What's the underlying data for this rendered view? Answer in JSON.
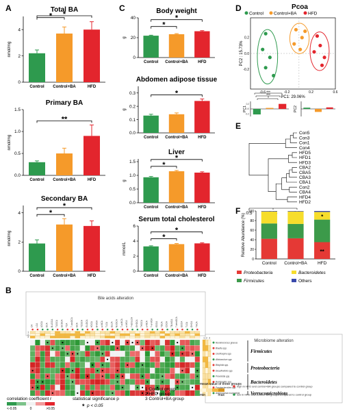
{
  "panel_labels": {
    "a": "A",
    "b": "B",
    "c": "C",
    "d": "D",
    "e": "E",
    "f": "F"
  },
  "colors": {
    "control": "#2e9a4e",
    "control_ba": "#f59a2a",
    "hfd": "#e3252d",
    "firmicutes": "#3c9a4a",
    "proteobacteria": "#e53935",
    "bacteroidetes": "#f6dd2c",
    "others": "#3949ab"
  },
  "chart_data": [
    {
      "id": "total-ba",
      "type": "bar",
      "title": "Total BA",
      "ylabel": "nmol/mg",
      "categories": [
        "Control",
        "Control+BA",
        "HFD"
      ],
      "values": [
        2.2,
        3.7,
        4.0
      ],
      "errors": [
        0.25,
        0.5,
        0.6
      ],
      "ylim": [
        0,
        5
      ],
      "yticks": [
        0,
        2,
        4
      ],
      "yticklabels": [
        "0",
        "2",
        "4"
      ],
      "significance": [
        {
          "from": 0,
          "to": 1,
          "label": "*"
        },
        {
          "from": 0,
          "to": 2,
          "label": "*"
        }
      ]
    },
    {
      "id": "primary-ba",
      "type": "bar",
      "title": "Primary BA",
      "ylabel": "nmol/mg",
      "categories": [
        "Control",
        "Control+BA",
        "HFD"
      ],
      "values": [
        0.3,
        0.5,
        0.9
      ],
      "errors": [
        0.03,
        0.12,
        0.25
      ],
      "ylim": [
        0,
        1.5
      ],
      "yticks": [
        0,
        0.5,
        1.0,
        1.5
      ],
      "yticklabels": [
        "0.0",
        "0.5",
        "1.0",
        "1.5"
      ],
      "significance": [
        {
          "from": 0,
          "to": 2,
          "label": "**"
        }
      ]
    },
    {
      "id": "secondary-ba",
      "type": "bar",
      "title": "Secondary BA",
      "ylabel": "nmol/mg",
      "categories": [
        "Control",
        "Control+BA",
        "HFD"
      ],
      "values": [
        1.9,
        3.2,
        3.1
      ],
      "errors": [
        0.25,
        0.4,
        0.35
      ],
      "ylim": [
        0,
        4.5
      ],
      "yticks": [
        0,
        2,
        4
      ],
      "yticklabels": [
        "0",
        "2",
        "4"
      ],
      "significance": [
        {
          "from": 0,
          "to": 1,
          "label": "*"
        },
        {
          "from": 0,
          "to": 2,
          "label": "*"
        }
      ]
    },
    {
      "id": "body-weight",
      "type": "bar",
      "title": "Body weight",
      "ylabel": "g",
      "categories": [
        "Control",
        "Control+BA",
        "HFD"
      ],
      "values": [
        22,
        23.5,
        26.5
      ],
      "errors": [
        0.5,
        0.6,
        0.6
      ],
      "ylim": [
        0,
        40
      ],
      "yticks": [
        0,
        20,
        40
      ],
      "yticklabels": [
        "0",
        "20",
        "40"
      ],
      "significance": [
        {
          "from": 0,
          "to": 1,
          "label": "*"
        },
        {
          "from": 0,
          "to": 2,
          "label": "*"
        }
      ]
    },
    {
      "id": "abdomen-adipose",
      "type": "bar",
      "title": "Abdomen adipose tissue",
      "ylabel": "g",
      "categories": [
        "Control",
        "Control+BA",
        "HFD"
      ],
      "values": [
        0.13,
        0.14,
        0.24
      ],
      "errors": [
        0.01,
        0.01,
        0.015
      ],
      "ylim": [
        0,
        0.35
      ],
      "yticks": [
        0,
        0.1,
        0.2,
        0.3
      ],
      "yticklabels": [
        "0.0",
        "0.1",
        "0.2",
        "0.3"
      ],
      "significance": [
        {
          "from": 0,
          "to": 2,
          "label": "*"
        }
      ]
    },
    {
      "id": "liver",
      "type": "bar",
      "title": "Liver",
      "ylabel": "g",
      "categories": [
        "Control",
        "Control+BA",
        "HFD"
      ],
      "values": [
        0.93,
        1.15,
        1.1
      ],
      "errors": [
        0.03,
        0.03,
        0.03
      ],
      "ylim": [
        0,
        1.6
      ],
      "yticks": [
        0,
        0.5,
        1.0,
        1.5
      ],
      "yticklabels": [
        "0.0",
        "0.5",
        "1.0",
        "1.5"
      ],
      "significance": [
        {
          "from": 0,
          "to": 1,
          "label": "*"
        },
        {
          "from": 0,
          "to": 2,
          "label": "*"
        }
      ]
    },
    {
      "id": "serum-cholesterol",
      "type": "bar",
      "title": "Serum total cholesterol",
      "ylabel": "mmol/L",
      "categories": [
        "Control",
        "Control+BA",
        "HFD"
      ],
      "values": [
        3.3,
        3.6,
        3.7
      ],
      "errors": [
        0.08,
        0.08,
        0.08
      ],
      "ylim": [
        0,
        6
      ],
      "yticks": [
        0,
        2,
        4,
        6
      ],
      "yticklabels": [
        "0",
        "2",
        "4",
        "6"
      ],
      "significance": [
        {
          "from": 0,
          "to": 1,
          "label": "*"
        },
        {
          "from": 0,
          "to": 2,
          "label": "*"
        }
      ]
    },
    {
      "id": "pcoa",
      "type": "scatter",
      "title": "Pcoa",
      "xlabel": "PC1: 29.06%",
      "ylabel": "PC2 : 15.73%",
      "xlim": [
        -0.8,
        0.6
      ],
      "ylim": [
        -0.45,
        0.45
      ],
      "xticks": [
        -0.6,
        -0.2,
        0.2,
        0.6
      ],
      "xticklabels": [
        "-0.6",
        "-0.2",
        "0.2",
        "0.6"
      ],
      "yticks": [
        -0.2,
        0.0,
        0.2
      ],
      "yticklabels": [
        "-0.2",
        "0.0",
        "0.2"
      ],
      "legend": [
        "Control",
        "Control+BA",
        "HFD"
      ],
      "series": [
        {
          "name": "Control",
          "points": [
            [
              -0.55,
              0.25
            ],
            [
              -0.6,
              0.05
            ],
            [
              -0.48,
              -0.05
            ],
            [
              -0.55,
              -0.18
            ],
            [
              -0.42,
              -0.28
            ]
          ]
        },
        {
          "name": "Control+BA",
          "points": [
            [
              -0.05,
              0.3
            ],
            [
              0.05,
              0.2
            ],
            [
              0.02,
              0.05
            ],
            [
              -0.08,
              0.12
            ],
            [
              0.1,
              0.28
            ]
          ]
        },
        {
          "name": "HFD",
          "points": [
            [
              0.3,
              0.22
            ],
            [
              0.35,
              0.1
            ],
            [
              0.42,
              -0.05
            ],
            [
              0.25,
              0.02
            ],
            [
              0.38,
              -0.15
            ]
          ]
        }
      ]
    },
    {
      "id": "pc-bars",
      "type": "bar",
      "ylabels": [
        "PC1",
        "PC2"
      ],
      "groups": [
        "Control",
        "Control+BA",
        "HFD"
      ],
      "pc1": [
        -0.22,
        0.04,
        0.2
      ],
      "pc2": [
        0.05,
        -0.12,
        0.06
      ],
      "significance": [
        "***",
        "***",
        "*"
      ],
      "yticks": [
        -0.2,
        0.0,
        0.2
      ],
      "yticklabels": [
        "-0.2",
        "0.0",
        "0.2"
      ]
    },
    {
      "id": "dendrogram",
      "type": "dendrogram",
      "leaves": [
        "Con5",
        "Con3",
        "Con1",
        "Con4",
        "HFD5",
        "HFD1",
        "HFD3",
        "CBA2",
        "CBA5",
        "CBA3",
        "CBA1",
        "Con2",
        "CBA4",
        "HFD4",
        "HFD2"
      ],
      "xticks": [
        0.5,
        0.25,
        0.0
      ],
      "xticklabels": [
        "0.5",
        "0.25",
        "0.0"
      ]
    },
    {
      "id": "relative-abundance",
      "type": "bar",
      "stacked": true,
      "ylabel": "Relative Abundance (%)",
      "categories": [
        "Control",
        "Control+BA",
        "HFD"
      ],
      "ylim": [
        0,
        100
      ],
      "yticks": [
        0,
        20,
        40,
        60,
        80,
        100
      ],
      "yticklabels": [
        "0",
        "20",
        "40",
        "60",
        "80",
        "100"
      ],
      "series": [
        {
          "name": "Proteobacteria",
          "values": [
            42,
            43,
            35
          ]
        },
        {
          "name": "Firmicutes",
          "values": [
            32,
            30,
            47
          ]
        },
        {
          "name": "Bacteroidetes",
          "values": [
            25,
            26,
            16
          ]
        },
        {
          "name": "Others",
          "values": [
            1,
            1,
            2
          ]
        }
      ],
      "annotations": [
        {
          "category": 2,
          "series": 2,
          "label": "*"
        },
        {
          "category": 2,
          "series": 0,
          "label": "**"
        }
      ]
    },
    {
      "id": "heatmap",
      "type": "heatmap",
      "title_bile": "Bile acids alteration",
      "title_microbiome": "Microbiome alteration",
      "bile_acids": [
        "CA",
        "LCA",
        "UDCA",
        "DCA",
        "B-UDCA",
        "TUDCA",
        "GCDCA",
        "TCA",
        "7-oxoDCA",
        "GCA",
        "TCDCA",
        "GUDCA",
        "HDCA",
        "B-MCA",
        "a-MCA",
        "TLCA",
        "GLCA",
        "NorDCA",
        "T-a-MCA",
        "w-MCA",
        "7-ketoLCA",
        "GHDCA",
        "THDCA",
        "a-MCA",
        "T-w-MCA",
        "GDCA",
        "TDCA",
        "CDCA",
        "TB-MCA",
        "7-ketoDCA",
        "GDCA",
        "TLCA",
        "GHCA",
        "THCA"
      ],
      "taxa": [
        "Ruminococcus gnavus",
        "Blautia spp.",
        "Oscillospira spp.",
        "Allobaculum spp.",
        "Bilophila spp.",
        "Desulfovibrio spp.",
        "Prevotella spp.",
        "Bacteroides spp.",
        "Parabacteroides spp.",
        "Akkermansia muciniphila"
      ],
      "phyla": [
        {
          "name": "Firmicutes",
          "rows": [
            0,
            3
          ]
        },
        {
          "name": "Proteobacteria",
          "rows": [
            4,
            5
          ]
        },
        {
          "name": "Bacteroidetes",
          "rows": [
            6,
            8
          ]
        },
        {
          "name": "Verrucomicrobiota",
          "rows": [
            9,
            9
          ]
        }
      ],
      "group_rows": [
        "1",
        "2",
        "3"
      ],
      "mean_labels": [
        "1",
        "2",
        "3"
      ],
      "legend": {
        "correlation_title": "correlation coefficient r",
        "low": "<-0.05",
        "mid": "0",
        "high": ">0.05",
        "significance_title": "statistical significance p",
        "significance_item": "p < 0.05",
        "groups": [
          "1 Control group",
          "2 HFD group",
          "3 Control+BA group"
        ],
        "mean_title": "mean value of three groups",
        "mean_min": "min",
        "mean_max": "max",
        "dot_red": "high in HFD and control+BA groups compared to control group",
        "dot_green": "low in HFD and control+BA groups compared to control group"
      }
    }
  ]
}
